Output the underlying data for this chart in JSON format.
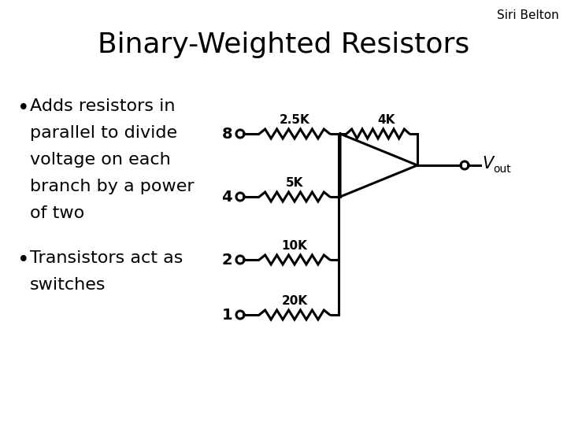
{
  "title": "Binary-Weighted Resistors",
  "author": "Siri Belton",
  "bullet1_lines": [
    "Adds resistors in",
    "parallel to divide",
    "voltage on each",
    "branch by a power",
    "of two"
  ],
  "bullet2_lines": [
    "Transistors act as",
    "switches"
  ],
  "bg_color": "#ffffff",
  "text_color": "#000000",
  "title_fontsize": 26,
  "author_fontsize": 11,
  "bullet_fontsize": 16,
  "input_labels": [
    "8",
    "4",
    "2",
    "1"
  ],
  "res_labels_left": [
    "2.5K",
    "5K",
    "10K",
    "20K"
  ],
  "res_label_right": "4K",
  "vout_label": "V",
  "vout_sub": "out"
}
